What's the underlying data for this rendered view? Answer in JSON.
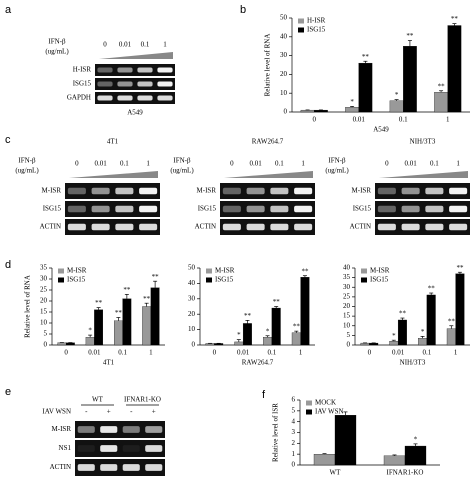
{
  "chart_data": [
    {
      "type": "bar",
      "panel": "b",
      "ylabel": "Relative level of RNA",
      "xlabel": "A549",
      "categories": [
        "0",
        "0.01",
        "0.1",
        "1"
      ],
      "ylim": [
        0,
        50
      ],
      "yticks": [
        0,
        10,
        20,
        30,
        40,
        50
      ],
      "legend": "top-left",
      "series": [
        {
          "name": "H-ISR",
          "color": "#999999",
          "values": [
            1,
            2.5,
            6,
            10.5
          ],
          "errors": [
            0.1,
            0.5,
            0.6,
            0.8
          ],
          "significance": [
            null,
            "*",
            "*",
            "**"
          ]
        },
        {
          "name": "ISG15",
          "color": "#000000",
          "values": [
            1,
            26,
            35,
            46
          ],
          "errors": [
            0.1,
            1,
            3,
            1
          ],
          "significance": [
            null,
            "**",
            "**",
            "**"
          ]
        }
      ]
    },
    {
      "type": "bar",
      "panel": "d",
      "ylabel": "Relative level of RNA",
      "xlabel": "4T1",
      "categories": [
        "0",
        "0.01",
        "0.1",
        "1"
      ],
      "ylim": [
        0,
        35
      ],
      "yticks": [
        0,
        5,
        10,
        15,
        20,
        25,
        30,
        35
      ],
      "legend": "top-left",
      "series": [
        {
          "name": "M-ISR",
          "color": "#999999",
          "values": [
            1,
            3.5,
            11,
            17.5
          ],
          "errors": [
            0.1,
            1,
            1.5,
            1.5
          ],
          "significance": [
            null,
            "*",
            "**",
            "**"
          ]
        },
        {
          "name": "ISG15",
          "color": "#000000",
          "values": [
            1,
            16,
            21,
            26
          ],
          "errors": [
            0.1,
            1,
            2,
            3
          ],
          "significance": [
            null,
            "**",
            "**",
            "**"
          ]
        }
      ]
    },
    {
      "type": "bar",
      "xlabel": "RAW264.7",
      "categories": [
        "0",
        "0.01",
        "0.1",
        "1"
      ],
      "ylim": [
        0,
        50
      ],
      "yticks": [
        0,
        10,
        20,
        30,
        40,
        50
      ],
      "legend": "top-left",
      "series": [
        {
          "name": "M-ISR",
          "color": "#999999",
          "values": [
            1,
            2,
            5,
            8
          ],
          "errors": [
            0.1,
            1.5,
            1,
            1
          ],
          "significance": [
            null,
            "*",
            "*",
            "**"
          ]
        },
        {
          "name": "ISG15",
          "color": "#000000",
          "values": [
            1,
            14,
            24,
            44
          ],
          "errors": [
            0.1,
            2,
            1,
            1
          ],
          "significance": [
            null,
            "**",
            "**",
            "**"
          ]
        }
      ]
    },
    {
      "type": "bar",
      "xlabel": "NIH/3T3",
      "categories": [
        "0",
        "0.01",
        "0.1",
        "1"
      ],
      "ylim": [
        0,
        40
      ],
      "yticks": [
        0,
        5,
        10,
        15,
        20,
        25,
        30,
        35,
        40
      ],
      "legend": "top-left",
      "series": [
        {
          "name": "M-ISR",
          "color": "#999999",
          "values": [
            1,
            2,
            3.5,
            8.5
          ],
          "errors": [
            0.1,
            0.5,
            1,
            1.5
          ],
          "significance": [
            null,
            "*",
            "*",
            "**"
          ]
        },
        {
          "name": "ISG15",
          "color": "#000000",
          "values": [
            1,
            13,
            26,
            37
          ],
          "errors": [
            0.1,
            1,
            1,
            0.8
          ],
          "significance": [
            null,
            "**",
            "**",
            "**"
          ]
        }
      ]
    },
    {
      "type": "bar",
      "panel": "f",
      "ylabel": "Relative level of ISR",
      "categories": [
        "WT",
        "IFNAR1-KO"
      ],
      "ylim": [
        0,
        6
      ],
      "yticks": [
        0,
        1,
        2,
        3,
        4,
        5,
        6
      ],
      "legend": "top-left",
      "series": [
        {
          "name": "MOCK",
          "color": "#999999",
          "values": [
            1,
            0.85
          ],
          "errors": [
            0.05,
            0.08
          ],
          "significance": [
            null,
            null
          ]
        },
        {
          "name": "IAV WSN",
          "color": "#000000",
          "values": [
            4.6,
            1.75
          ],
          "errors": [
            0.3,
            0.2
          ],
          "significance": [
            null,
            "*"
          ]
        }
      ]
    }
  ],
  "gels": [
    {
      "panel": "a",
      "treatment": "IFN-β",
      "unit": "(ug/mL)",
      "lanes": [
        "0",
        "0.01",
        "0.1",
        "1"
      ],
      "rows": [
        "H-ISR",
        "ISG15",
        "GAPDH"
      ],
      "cell_line": "A549"
    },
    {
      "panel": "c",
      "title": "4T1",
      "treatment": "IFN-β",
      "unit": "(ug/mL)",
      "lanes": [
        "0",
        "0.01",
        "0.1",
        "1"
      ],
      "rows": [
        "M-ISR",
        "ISG15",
        "ACTIN"
      ]
    },
    {
      "title": "RAW264.7",
      "treatment": "IFN-β",
      "unit": "(ug/mL)",
      "lanes": [
        "0",
        "0.01",
        "0.1",
        "1"
      ],
      "rows": [
        "M-ISR",
        "ISG15",
        "ACTIN"
      ]
    },
    {
      "title": "NIH/3T3",
      "treatment": "IFN-β",
      "unit": "(ug/mL)",
      "lanes": [
        "0",
        "0.01",
        "0.1",
        "1"
      ],
      "rows": [
        "M-ISR",
        "ISG15",
        "ACTIN"
      ]
    },
    {
      "panel": "e",
      "groups": [
        "WT",
        "IFNAR1-KO"
      ],
      "treatment": "IAV WSN",
      "lanes": [
        "-",
        "+",
        "-",
        "+"
      ],
      "rows": [
        "M-ISR",
        "NS1",
        "ACTIN"
      ]
    }
  ]
}
